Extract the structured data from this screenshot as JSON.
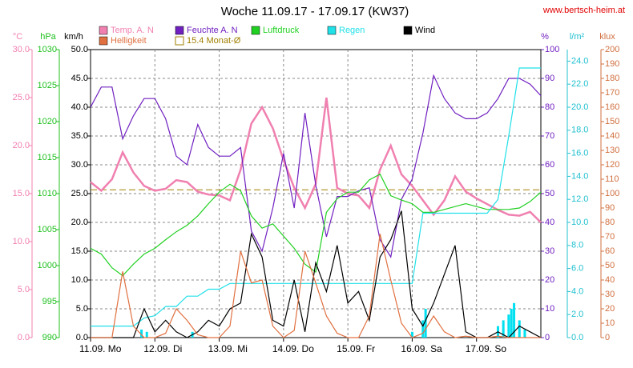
{
  "chart_data": {
    "type": "line",
    "title": "Woche 11.09.17 - 17.09.17 (KW37)",
    "source": "www.bertsch-heim.at",
    "xlim": [
      0,
      168
    ],
    "xticks": [
      {
        "value": 0,
        "label": "11.09.  Mo"
      },
      {
        "value": 24,
        "label": "12.09.  Di"
      },
      {
        "value": 48,
        "label": "13.09.  Mi"
      },
      {
        "value": 72,
        "label": "14.09.  Do"
      },
      {
        "value": 96,
        "label": "15.09.  Fr"
      },
      {
        "value": 120,
        "label": "16.09.  Sa"
      },
      {
        "value": 144,
        "label": "17.09.  So"
      }
    ],
    "x": [
      0,
      4,
      8,
      12,
      16,
      20,
      24,
      28,
      32,
      36,
      40,
      44,
      48,
      52,
      56,
      60,
      64,
      68,
      72,
      76,
      80,
      84,
      88,
      92,
      96,
      100,
      104,
      108,
      112,
      116,
      120,
      124,
      128,
      132,
      136,
      140,
      144,
      148,
      152,
      156,
      160,
      164,
      168
    ],
    "axes": [
      {
        "label": "°C",
        "color": "#f080b0",
        "lim": [
          0,
          30
        ],
        "ticks": [
          {
            "value": 0,
            "label": "0.0"
          },
          {
            "value": 5,
            "label": "5.0"
          },
          {
            "value": 10,
            "label": "10.0"
          },
          {
            "value": 15,
            "label": "15.0"
          },
          {
            "value": 20,
            "label": "20.0"
          },
          {
            "value": 25,
            "label": "25.0"
          },
          {
            "value": 30,
            "label": "30.0"
          }
        ]
      },
      {
        "label": "hPa",
        "color": "#20c020",
        "lim": [
          990,
          1030
        ],
        "ticks": [
          990,
          995,
          1000,
          1005,
          1010,
          1015,
          1020,
          1025,
          1030
        ]
      },
      {
        "label": "km/h",
        "color": "#000000",
        "lim": [
          0,
          50
        ],
        "grid": true,
        "ticks": [
          {
            "value": 0,
            "label": "0.0"
          },
          {
            "value": 5,
            "label": "5.0"
          },
          {
            "value": 10,
            "label": "10.0"
          },
          {
            "value": 15,
            "label": "15.0"
          },
          {
            "value": 20,
            "label": "20.0"
          },
          {
            "value": 25,
            "label": "25.0"
          },
          {
            "value": 30,
            "label": "30.0"
          },
          {
            "value": 35,
            "label": "35.0"
          },
          {
            "value": 40,
            "label": "40.0"
          },
          {
            "value": 45,
            "label": "45.0"
          },
          {
            "value": 50,
            "label": "50.0"
          }
        ]
      },
      {
        "label": "%",
        "color": "#7020c0",
        "lim": [
          0,
          100
        ],
        "ticks": [
          0,
          10,
          20,
          30,
          40,
          50,
          60,
          70,
          80,
          90,
          100
        ]
      },
      {
        "label": "l/m²",
        "color": "#20c0d0",
        "lim": [
          0,
          25
        ],
        "ticks": [
          {
            "value": 0,
            "label": "0.0"
          },
          {
            "value": 2,
            "label": "2.0"
          },
          {
            "value": 4,
            "label": "4.0"
          },
          {
            "value": 6,
            "label": "6.0"
          },
          {
            "value": 8,
            "label": "8.0"
          },
          {
            "value": 10,
            "label": "10.0"
          },
          {
            "value": 12,
            "label": "12.0"
          },
          {
            "value": 14,
            "label": "14.0"
          },
          {
            "value": 16,
            "label": "16.0"
          },
          {
            "value": 18,
            "label": "18.0"
          },
          {
            "value": 20,
            "label": "20.0"
          },
          {
            "value": 22,
            "label": "22.0"
          },
          {
            "value": 24,
            "label": "24.0"
          }
        ]
      },
      {
        "label": "klux",
        "color": "#d07040",
        "lim": [
          0,
          200
        ],
        "ticks": [
          0,
          10,
          20,
          30,
          40,
          50,
          60,
          70,
          80,
          90,
          100,
          110,
          120,
          130,
          140,
          150,
          160,
          170,
          180,
          190,
          200
        ]
      }
    ],
    "bars": {
      "axis": 4,
      "color": "#00e0f0",
      "x": [
        19,
        21,
        38,
        120,
        124,
        125,
        152,
        154,
        156,
        157,
        158,
        160,
        162
      ],
      "values": [
        0.7,
        0.5,
        0.5,
        0.5,
        1.5,
        2.5,
        1.0,
        1.5,
        2.0,
        2.5,
        3.0,
        1.5,
        0.7
      ]
    },
    "series": [
      {
        "name": "Temp. A. N",
        "color": "#f080b0",
        "axis": 0,
        "values": [
          16.2,
          15.3,
          16.5,
          19.3,
          17.2,
          15.8,
          15.3,
          15.5,
          16.4,
          16.2,
          15.2,
          14.9,
          14.8,
          14.3,
          17.5,
          22.3,
          24.0,
          21.8,
          18.5,
          15.6,
          13.5,
          16.0,
          25.0,
          15.6,
          15.0,
          14.8,
          13.5,
          17.5,
          20.0,
          17.0,
          15.8,
          14.3,
          12.8,
          14.3,
          16.8,
          15.2,
          14.5,
          13.9,
          13.3,
          12.8,
          12.7,
          13.1,
          12.0
        ]
      },
      {
        "name": "Feuchte A. N",
        "color": "#7020c0",
        "axis": 3,
        "values": [
          80,
          87,
          87,
          69,
          77,
          83,
          83,
          76,
          63,
          60,
          74,
          66,
          63,
          63,
          66,
          37,
          30,
          45,
          64,
          45,
          78,
          53,
          35,
          49,
          49,
          51,
          52,
          34,
          28,
          48,
          55,
          71,
          91,
          83,
          78,
          76,
          76,
          78,
          83,
          90,
          90,
          88,
          84
        ]
      },
      {
        "name": "Luftdruck",
        "color": "#20d020",
        "axis": 1,
        "values": [
          1002.4,
          1001.6,
          999.7,
          998.6,
          1000.2,
          1001.6,
          1002.4,
          1003.6,
          1004.7,
          1005.6,
          1006.9,
          1008.6,
          1010.2,
          1011.3,
          1010.4,
          1006.9,
          1005.2,
          1005.8,
          1004.1,
          1002.4,
          1000.2,
          999.1,
          1007.4,
          1009.3,
          1010.2,
          1010.2,
          1011.9,
          1012.7,
          1009.7,
          1009.1,
          1008.6,
          1007.4,
          1007.4,
          1007.8,
          1008.2,
          1008.6,
          1008.2,
          1007.8,
          1007.8,
          1007.8,
          1008.0,
          1008.9,
          1010.2
        ]
      },
      {
        "name": "Regen",
        "color": "#20e0e8",
        "axis": 4,
        "values": [
          1.0,
          1.0,
          1.0,
          1.0,
          1.0,
          1.7,
          1.9,
          2.7,
          2.7,
          3.6,
          3.6,
          4.2,
          4.2,
          4.7,
          4.7,
          4.7,
          4.7,
          4.7,
          4.7,
          4.7,
          4.7,
          4.7,
          4.7,
          4.7,
          4.7,
          4.7,
          4.7,
          4.7,
          4.7,
          4.7,
          4.7,
          10.8,
          10.8,
          10.8,
          10.8,
          10.8,
          10.8,
          10.8,
          12.0,
          17.5,
          23.4,
          23.4,
          23.4
        ]
      },
      {
        "name": "Wind",
        "color": "#000000",
        "axis": 2,
        "values": [
          0,
          0,
          0,
          0,
          0,
          5,
          1,
          3,
          1,
          0,
          1,
          3,
          2,
          5,
          6,
          18,
          14,
          3,
          2,
          10,
          1,
          13,
          8,
          16,
          6,
          8,
          3,
          14,
          17,
          22,
          5,
          2,
          6,
          11,
          16,
          1,
          0,
          0,
          1,
          0,
          2,
          1,
          0
        ]
      },
      {
        "name": "Helligkeit",
        "color": "#e07040",
        "axis": 5,
        "values": [
          0,
          0,
          0,
          46,
          8,
          0,
          0,
          3,
          20,
          12,
          2,
          0,
          0,
          8,
          60,
          38,
          40,
          8,
          0,
          5,
          60,
          38,
          15,
          3,
          0,
          0,
          15,
          72,
          40,
          10,
          0,
          3,
          15,
          4,
          0,
          1,
          0,
          0,
          1,
          0,
          0,
          0,
          0
        ]
      }
    ],
    "reference": {
      "name": "15.4 Monat-Ø",
      "value": 15.4,
      "axis": 0,
      "color": "#a08000"
    }
  }
}
